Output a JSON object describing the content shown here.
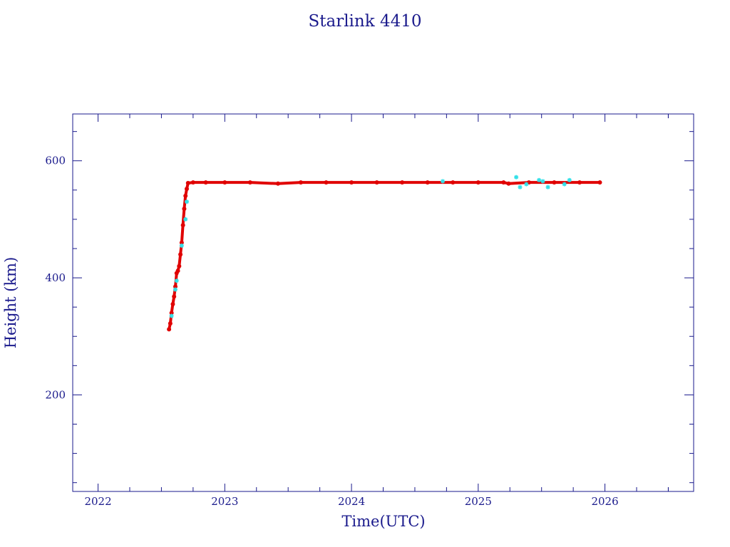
{
  "chart_data": {
    "type": "scatter",
    "title": "Starlink 4410",
    "xlabel": "Time(UTC)",
    "ylabel": "Height (km)",
    "xlim": [
      2021.8,
      2026.7
    ],
    "ylim": [
      35,
      680
    ],
    "x_ticks": [
      "2022",
      "2023",
      "2024",
      "2025",
      "2026"
    ],
    "y_ticks": [
      "200",
      "400",
      "600"
    ],
    "grid": false,
    "colors": {
      "axis": "#1a1a8c",
      "primary": "#e00000",
      "secondary": "#33e0e8"
    },
    "series": [
      {
        "color": "#e00000",
        "marker": "dot",
        "points": [
          [
            2022.56,
            312
          ],
          [
            2022.57,
            322
          ],
          [
            2022.58,
            340
          ],
          [
            2022.59,
            355
          ],
          [
            2022.6,
            368
          ],
          [
            2022.61,
            385
          ],
          [
            2022.62,
            408
          ],
          [
            2022.63,
            412
          ],
          [
            2022.64,
            420
          ],
          [
            2022.65,
            440
          ],
          [
            2022.66,
            460
          ],
          [
            2022.67,
            490
          ],
          [
            2022.68,
            518
          ],
          [
            2022.69,
            540
          ],
          [
            2022.7,
            552
          ],
          [
            2022.71,
            562
          ],
          [
            2022.75,
            563
          ],
          [
            2022.85,
            563
          ],
          [
            2023.0,
            563
          ],
          [
            2023.2,
            563
          ],
          [
            2023.42,
            561
          ],
          [
            2023.6,
            563
          ],
          [
            2023.8,
            563
          ],
          [
            2024.0,
            563
          ],
          [
            2024.2,
            563
          ],
          [
            2024.4,
            563
          ],
          [
            2024.6,
            563
          ],
          [
            2024.8,
            563
          ],
          [
            2025.0,
            563
          ],
          [
            2025.2,
            563
          ],
          [
            2025.24,
            561
          ],
          [
            2025.4,
            563
          ],
          [
            2025.6,
            563
          ],
          [
            2025.8,
            563
          ],
          [
            2025.96,
            563
          ]
        ]
      },
      {
        "color": "#33e0e8",
        "marker": "star",
        "points": [
          [
            2022.58,
            335
          ],
          [
            2022.61,
            380
          ],
          [
            2022.62,
            395
          ],
          [
            2022.66,
            455
          ],
          [
            2022.69,
            500
          ],
          [
            2022.7,
            530
          ],
          [
            2024.72,
            565
          ],
          [
            2025.3,
            572
          ],
          [
            2025.33,
            555
          ],
          [
            2025.38,
            560
          ],
          [
            2025.48,
            567
          ],
          [
            2025.51,
            565
          ],
          [
            2025.55,
            555
          ],
          [
            2025.68,
            560
          ],
          [
            2025.72,
            567
          ]
        ]
      }
    ]
  }
}
